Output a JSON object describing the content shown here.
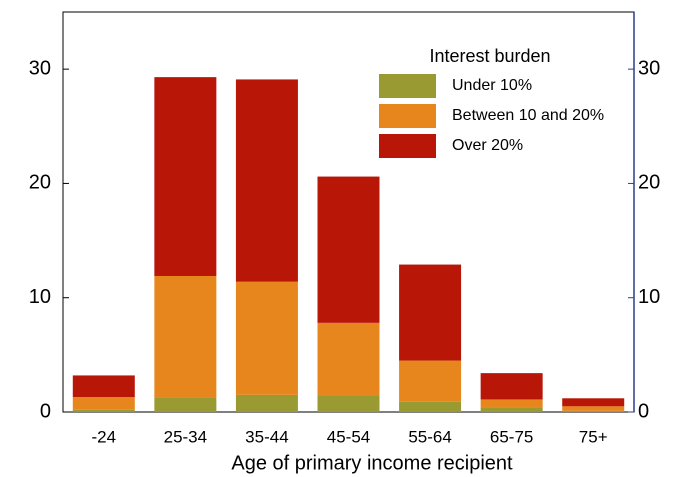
{
  "chart_data": {
    "type": "stacked-bar",
    "x_label": "Age of primary income recipient",
    "legend_title": "Interest burden",
    "categories": [
      "-24",
      "25-34",
      "35-44",
      "45-54",
      "55-64",
      "65-75",
      "75+"
    ],
    "series": [
      {
        "name": "Under 10%",
        "color": "#9a9a33",
        "values": [
          0.2,
          1.3,
          1.5,
          1.4,
          0.9,
          0.4,
          0.1
        ]
      },
      {
        "name": "Between 10 and 20%",
        "color": "#e8861e",
        "values": [
          1.1,
          10.6,
          9.9,
          6.4,
          3.6,
          0.7,
          0.4
        ]
      },
      {
        "name": "Over 20%",
        "color": "#b81607",
        "values": [
          1.9,
          17.4,
          17.7,
          12.8,
          8.4,
          2.3,
          0.7
        ]
      }
    ],
    "ylim": [
      0,
      35
    ],
    "yticks": [
      0,
      10,
      20,
      30
    ],
    "grid": false
  }
}
